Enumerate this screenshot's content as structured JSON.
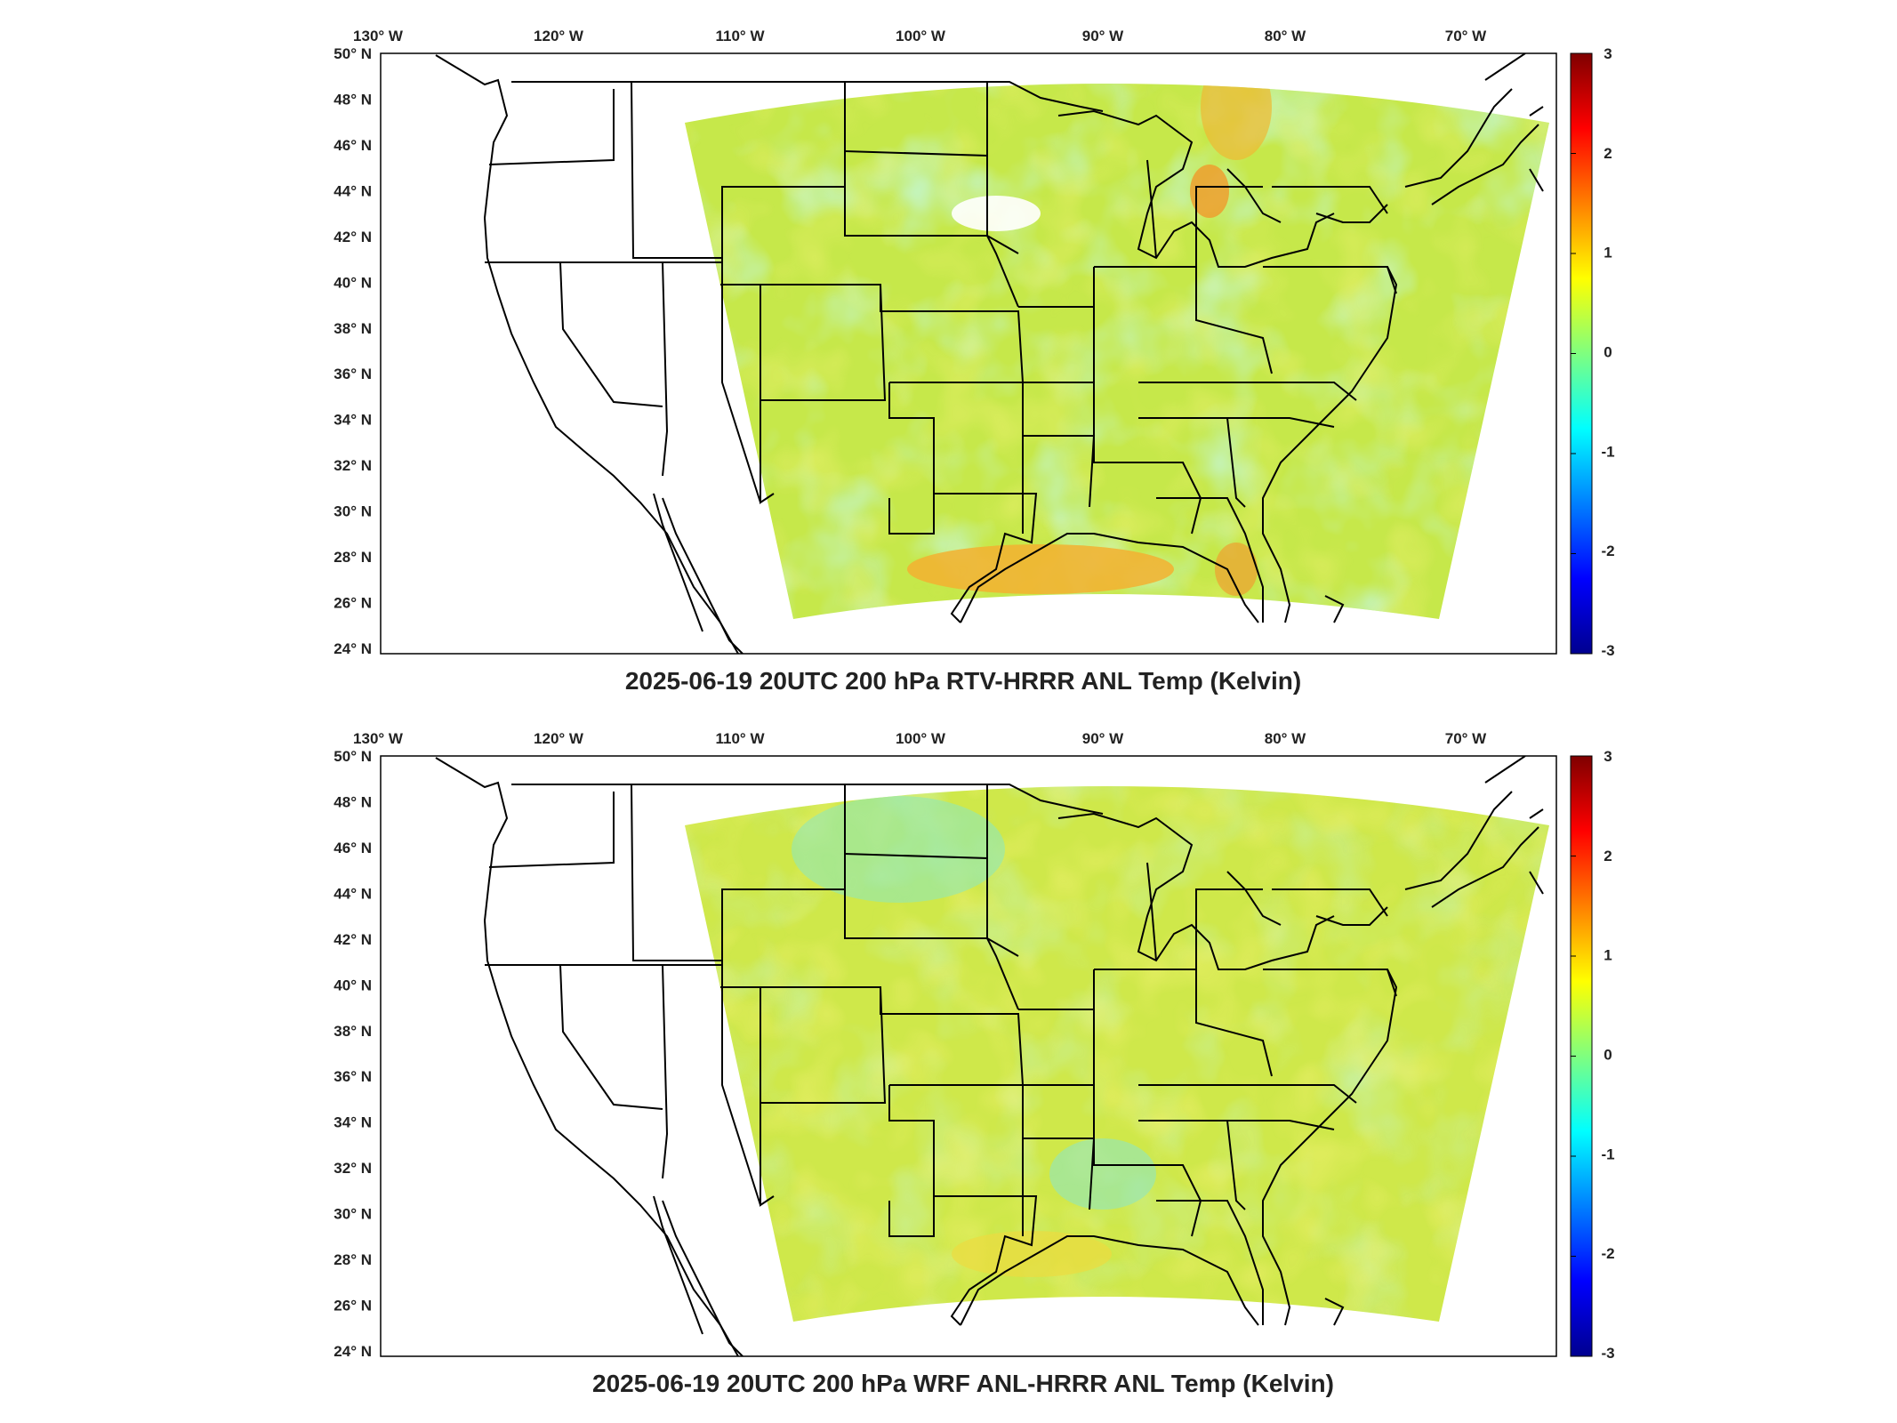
{
  "panels": [
    {
      "id": "top",
      "title": "2025-06-19 20UTC 200 hPa RTV-HRRR ANL Temp (Kelvin)"
    },
    {
      "id": "bottom",
      "title": "2025-06-19 20UTC 200 hPa WRF ANL-HRRR ANL Temp (Kelvin)"
    }
  ],
  "lon_ticks": [
    "130",
    "120",
    "110",
    "100",
    "90",
    "80",
    "70"
  ],
  "lat_ticks": [
    "50",
    "48",
    "46",
    "44",
    "42",
    "40",
    "38",
    "36",
    "34",
    "32",
    "30",
    "28",
    "26",
    "24"
  ],
  "lon_suffix": "W",
  "lat_suffix": "N",
  "degree_symbol": "°",
  "colorbar": {
    "ticks": [
      "3",
      "2",
      "1",
      "0",
      "-1",
      "-2",
      "-3"
    ],
    "range": [
      -3,
      3
    ],
    "colormap": "jet"
  },
  "colors": {
    "field_base": "#c6e84a",
    "field_cyan": "#7fe3c2",
    "field_yellow": "#e2ea3a",
    "field_orange": "#f3b830",
    "outline": "#000000"
  }
}
